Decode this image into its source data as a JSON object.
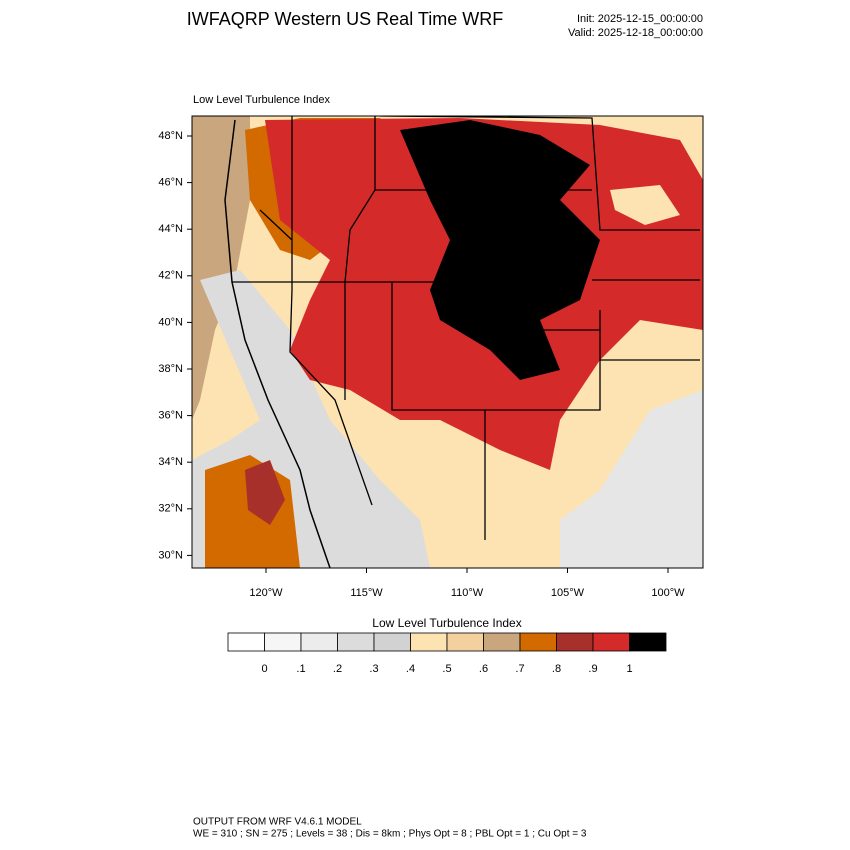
{
  "header": {
    "title": "IWFAQRP Western US Real Time WRF",
    "init": "Init: 2025-12-15_00:00:00",
    "valid": "Valid: 2025-12-18_00:00:00"
  },
  "map": {
    "subtitle": "Low Level Turbulence Index",
    "lat_labels": [
      "48°N",
      "46°N",
      "44°N",
      "42°N",
      "40°N",
      "38°N",
      "36°N",
      "34°N",
      "32°N",
      "30°N"
    ],
    "lon_labels": [
      "120°W",
      "115°W",
      "110°W",
      "105°W",
      "100°W"
    ]
  },
  "colorbar": {
    "title": "Low Level Turbulence Index",
    "labels": [
      "0",
      ".1",
      ".2",
      ".3",
      ".4",
      ".5",
      ".6",
      ".7",
      ".8",
      ".9",
      "1"
    ],
    "colors": [
      "#ffffff",
      "#f6f6f6",
      "#ececec",
      "#dcdcdc",
      "#d2d2d2",
      "#fde3b2",
      "#f3d09e",
      "#c9a67e",
      "#d26a00",
      "#a8302a",
      "#d42a2a",
      "#000000"
    ]
  },
  "footer": {
    "line1": "OUTPUT FROM WRF V4.6.1 MODEL",
    "line2": "WE = 310 ; SN = 275 ; Levels = 38 ; Dis = 8km ; Phys Opt = 8 ; PBL Opt = 1 ; Cu Opt = 3"
  }
}
